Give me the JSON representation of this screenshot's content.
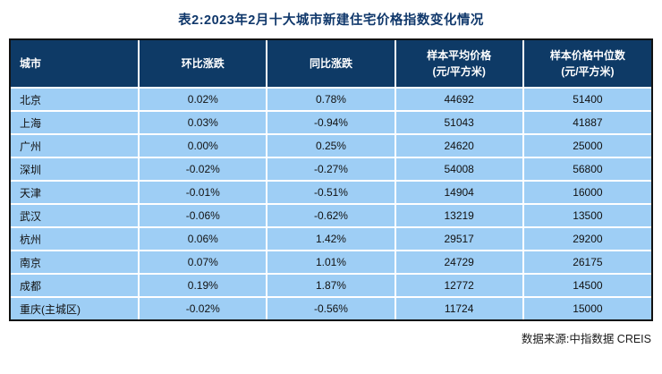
{
  "page": {
    "title": "表2:2023年2月十大城市新建住宅价格指数变化情况",
    "source_note": "数据来源:中指数据 CREIS"
  },
  "table": {
    "columns": [
      "城市",
      "环比涨跌",
      "同比涨跌",
      "样本平均价格\n(元/平方米)",
      "样本价格中位数\n(元/平方米)"
    ],
    "rows": [
      [
        "北京",
        "0.02%",
        "0.78%",
        "44692",
        "51400"
      ],
      [
        "上海",
        "0.03%",
        "-0.94%",
        "51043",
        "41887"
      ],
      [
        "广州",
        "0.00%",
        "0.25%",
        "24620",
        "25000"
      ],
      [
        "深圳",
        "-0.02%",
        "-0.27%",
        "54008",
        "56800"
      ],
      [
        "天津",
        "-0.01%",
        "-0.51%",
        "14904",
        "16000"
      ],
      [
        "武汉",
        "-0.06%",
        "-0.62%",
        "13219",
        "13500"
      ],
      [
        "杭州",
        "0.06%",
        "1.42%",
        "29517",
        "29200"
      ],
      [
        "南京",
        "0.07%",
        "1.01%",
        "24729",
        "26175"
      ],
      [
        "成都",
        "0.19%",
        "1.87%",
        "12772",
        "14500"
      ],
      [
        "重庆(主城区)",
        "-0.02%",
        "-0.56%",
        "11724",
        "15000"
      ]
    ]
  },
  "colors": {
    "header_bg": "#0e3a66",
    "row_bg": "#9ecef5",
    "title_color": "#10386b",
    "outer_border": "#111111",
    "separator": "#ffffff"
  }
}
